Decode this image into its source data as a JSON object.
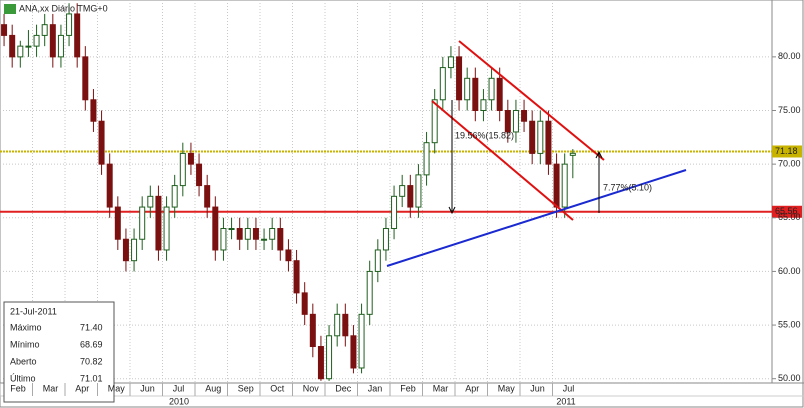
{
  "chart_data": {
    "type": "candlestick",
    "title": "ANA,xx Diário TMG+0",
    "categories": [
      "Feb",
      "Mar",
      "Apr",
      "May",
      "Jun",
      "Jul",
      "Aug",
      "Sep",
      "Oct",
      "Nov",
      "Dec",
      "Jan",
      "Feb",
      "Mar",
      "Apr",
      "May",
      "Jun",
      "Jul"
    ],
    "years": [
      "2010",
      "2011"
    ],
    "open": [
      83,
      82,
      80,
      81,
      81,
      82,
      83,
      80,
      82,
      84,
      80,
      76,
      74,
      70,
      66,
      63,
      61,
      63,
      66,
      67,
      62,
      66,
      68,
      71,
      70,
      68,
      66,
      62,
      64,
      64,
      63,
      64,
      63,
      63,
      64,
      62,
      61,
      58,
      56,
      53,
      50,
      54,
      56,
      54,
      51,
      56,
      60,
      62,
      64,
      67,
      68,
      66,
      69,
      72,
      76,
      79,
      80,
      76,
      78,
      75,
      76,
      78,
      75,
      73,
      75,
      74,
      71,
      74,
      70,
      66,
      70.82
    ],
    "high": [
      84,
      83,
      81.5,
      82.5,
      83,
      84,
      84,
      83,
      85,
      85,
      81,
      77,
      75,
      71,
      67,
      64,
      64,
      67,
      68,
      68,
      67,
      69,
      72,
      72,
      71,
      69,
      67,
      65,
      65,
      65,
      65,
      65,
      64,
      65,
      65,
      63,
      62,
      59,
      57,
      54,
      55,
      57,
      57,
      55,
      57,
      61,
      63,
      65,
      68,
      69,
      69,
      70,
      73,
      77,
      80,
      81,
      81,
      79,
      79,
      77,
      79,
      79,
      76,
      76,
      76,
      75,
      75,
      75,
      71,
      71,
      71.4
    ],
    "low": [
      81,
      79,
      79,
      80,
      80,
      81,
      79,
      79,
      81,
      79,
      75,
      73,
      69,
      65,
      62,
      60,
      60,
      62,
      65,
      61,
      61,
      65,
      67,
      69,
      67,
      65,
      61,
      61,
      63,
      62,
      62,
      62,
      62,
      62,
      61,
      60,
      57,
      55,
      52,
      49.8,
      49.8,
      53,
      53,
      50.5,
      50.5,
      55,
      59,
      61,
      63,
      66,
      65,
      65,
      68,
      71,
      75,
      78,
      75,
      75,
      74,
      74,
      75,
      74,
      72,
      72,
      73,
      70,
      70,
      69,
      65,
      65,
      68.69
    ],
    "close": [
      82,
      80,
      81,
      81,
      82,
      83,
      80,
      82,
      84,
      80,
      76,
      74,
      70,
      66,
      63,
      61,
      63,
      66,
      67,
      62,
      66,
      68,
      71,
      70,
      68,
      66,
      62,
      64,
      64,
      63,
      64,
      63,
      63,
      64,
      62,
      61,
      58,
      56,
      53,
      50,
      54,
      56,
      54,
      51,
      56,
      60,
      62,
      64,
      67,
      68,
      66,
      69,
      72,
      76,
      79,
      80,
      76,
      78,
      75,
      76,
      78,
      75,
      73,
      75,
      74,
      71,
      74,
      70,
      66,
      70,
      71.01
    ],
    "up_color": "#1f5f1f",
    "down_color": "#7a1010",
    "ylim": [
      49.6,
      85.3
    ],
    "yticks": [
      {
        "value": 50,
        "label": "50.00"
      },
      {
        "value": 55,
        "label": "55.00"
      },
      {
        "value": 60,
        "label": "60.00"
      },
      {
        "value": 65,
        "label": "65.00"
      },
      {
        "value": 70,
        "label": "70.00"
      },
      {
        "value": 75,
        "label": "75.00"
      },
      {
        "value": 80,
        "label": "80.00"
      }
    ],
    "grid": true,
    "levels": [
      {
        "value": 71.18,
        "label": "71.18",
        "color": "#c8b400"
      },
      {
        "value": 65.56,
        "label": "65.56",
        "color": "#e02020"
      }
    ],
    "annotations": [
      "19.56%(15.82)",
      "7.77%(5.10)"
    ],
    "info": {
      "date": "21-Jul-2011",
      "rows": [
        [
          "Máximo",
          "71.40"
        ],
        [
          "Mínimo",
          "68.69"
        ],
        [
          "Aberto",
          "70.82"
        ],
        [
          "Último",
          "71.01"
        ]
      ]
    }
  }
}
